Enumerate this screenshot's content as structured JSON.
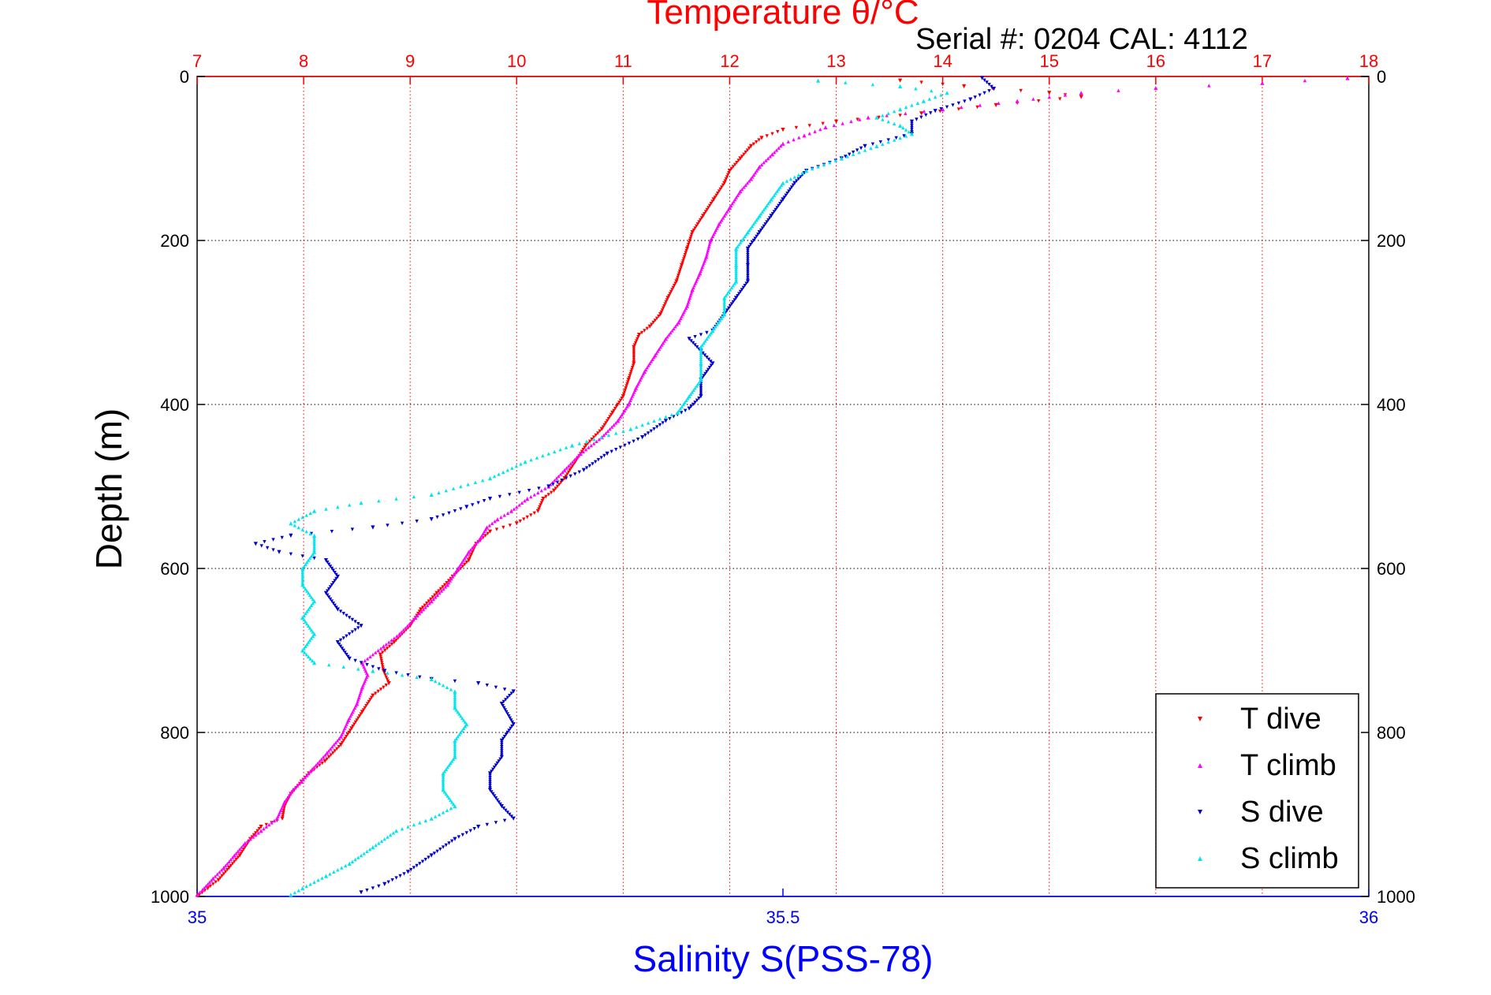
{
  "chart_data": {
    "type": "scatter",
    "title": "Temperature θ/°C",
    "subtitle": "Serial #: 0204  CAL: 4112",
    "ylabel": "Depth (m)",
    "xlabel": "Salinity S(PSS-78)",
    "ylim": [
      0,
      1000
    ],
    "y_reversed": true,
    "y_ticks": [
      "0",
      "200",
      "400",
      "600",
      "800",
      "1000"
    ],
    "temperature_axis": {
      "position": "top",
      "range": [
        7,
        18
      ],
      "ticks": [
        "7",
        "8",
        "9",
        "10",
        "11",
        "12",
        "13",
        "14",
        "15",
        "16",
        "17",
        "18"
      ],
      "color": "#ff0000"
    },
    "salinity_axis": {
      "position": "bottom",
      "range": [
        35,
        36
      ],
      "ticks": [
        "35",
        "35.5",
        "36"
      ],
      "color": "#0000ff"
    },
    "grid": true,
    "legend_position": "bottom-right",
    "series": [
      {
        "name": "T dive",
        "axis": "temperature",
        "color": "#ff0000",
        "marker": "triangle-down",
        "points": [
          [
            13.6,
            5
          ],
          [
            14.2,
            12
          ],
          [
            15.0,
            20
          ],
          [
            15.3,
            25
          ],
          [
            14.5,
            35
          ],
          [
            13.8,
            45
          ],
          [
            13.0,
            55
          ],
          [
            12.5,
            65
          ],
          [
            12.3,
            75
          ],
          [
            12.2,
            85
          ],
          [
            12.1,
            100
          ],
          [
            12.0,
            115
          ],
          [
            11.95,
            130
          ],
          [
            11.85,
            150
          ],
          [
            11.75,
            170
          ],
          [
            11.65,
            190
          ],
          [
            11.6,
            210
          ],
          [
            11.55,
            230
          ],
          [
            11.5,
            250
          ],
          [
            11.42,
            270
          ],
          [
            11.35,
            290
          ],
          [
            11.25,
            305
          ],
          [
            11.15,
            315
          ],
          [
            11.1,
            330
          ],
          [
            11.1,
            350
          ],
          [
            11.05,
            370
          ],
          [
            11.0,
            390
          ],
          [
            10.9,
            410
          ],
          [
            10.8,
            430
          ],
          [
            10.65,
            450
          ],
          [
            10.55,
            470
          ],
          [
            10.45,
            490
          ],
          [
            10.35,
            505
          ],
          [
            10.25,
            515
          ],
          [
            10.2,
            530
          ],
          [
            10.0,
            545
          ],
          [
            9.75,
            555
          ],
          [
            9.62,
            570
          ],
          [
            9.55,
            590
          ],
          [
            9.4,
            610
          ],
          [
            9.25,
            630
          ],
          [
            9.1,
            650
          ],
          [
            9.0,
            670
          ],
          [
            8.85,
            690
          ],
          [
            8.72,
            705
          ],
          [
            8.75,
            725
          ],
          [
            8.8,
            740
          ],
          [
            8.65,
            755
          ],
          [
            8.55,
            775
          ],
          [
            8.45,
            795
          ],
          [
            8.35,
            815
          ],
          [
            8.2,
            835
          ],
          [
            8.05,
            850
          ],
          [
            7.98,
            860
          ],
          [
            7.88,
            875
          ],
          [
            7.82,
            890
          ],
          [
            7.8,
            905
          ],
          [
            7.6,
            915
          ],
          [
            7.5,
            930
          ],
          [
            7.4,
            950
          ],
          [
            7.3,
            965
          ],
          [
            7.2,
            980
          ],
          [
            7.1,
            990
          ],
          [
            7.02,
            998
          ]
        ]
      },
      {
        "name": "T climb",
        "axis": "temperature",
        "color": "#ff00ff",
        "marker": "triangle-up",
        "points": [
          [
            17.8,
            2
          ],
          [
            17.0,
            8
          ],
          [
            16.0,
            14
          ],
          [
            15.3,
            20
          ],
          [
            14.7,
            30
          ],
          [
            14.0,
            40
          ],
          [
            13.3,
            50
          ],
          [
            12.9,
            62
          ],
          [
            12.7,
            72
          ],
          [
            12.5,
            82
          ],
          [
            12.4,
            95
          ],
          [
            12.28,
            110
          ],
          [
            12.2,
            125
          ],
          [
            12.1,
            140
          ],
          [
            12.0,
            160
          ],
          [
            11.9,
            180
          ],
          [
            11.82,
            200
          ],
          [
            11.78,
            220
          ],
          [
            11.72,
            240
          ],
          [
            11.65,
            260
          ],
          [
            11.6,
            280
          ],
          [
            11.52,
            300
          ],
          [
            11.4,
            320
          ],
          [
            11.3,
            340
          ],
          [
            11.2,
            360
          ],
          [
            11.12,
            380
          ],
          [
            11.05,
            400
          ],
          [
            10.95,
            420
          ],
          [
            10.8,
            440
          ],
          [
            10.6,
            460
          ],
          [
            10.45,
            480
          ],
          [
            10.3,
            500
          ],
          [
            10.1,
            515
          ],
          [
            9.95,
            530
          ],
          [
            9.82,
            540
          ],
          [
            9.72,
            550
          ],
          [
            9.65,
            565
          ],
          [
            9.55,
            580
          ],
          [
            9.45,
            600
          ],
          [
            9.35,
            620
          ],
          [
            9.2,
            640
          ],
          [
            9.05,
            660
          ],
          [
            8.9,
            680
          ],
          [
            8.75,
            695
          ],
          [
            8.55,
            715
          ],
          [
            8.6,
            730
          ],
          [
            8.55,
            745
          ],
          [
            8.5,
            765
          ],
          [
            8.42,
            785
          ],
          [
            8.35,
            805
          ],
          [
            8.22,
            825
          ],
          [
            8.08,
            845
          ],
          [
            7.98,
            860
          ],
          [
            7.9,
            870
          ],
          [
            7.82,
            885
          ],
          [
            7.75,
            905
          ],
          [
            7.6,
            920
          ],
          [
            7.45,
            935
          ],
          [
            7.35,
            950
          ],
          [
            7.25,
            965
          ],
          [
            7.15,
            978
          ],
          [
            7.05,
            992
          ],
          [
            7.0,
            998
          ]
        ]
      },
      {
        "name": "S dive",
        "axis": "salinity",
        "color": "#0000cc",
        "marker": "triangle-down",
        "points": [
          [
            35.67,
            2
          ],
          [
            35.68,
            15
          ],
          [
            35.66,
            28
          ],
          [
            35.63,
            42
          ],
          [
            35.61,
            55
          ],
          [
            35.61,
            70
          ],
          [
            35.57,
            85
          ],
          [
            35.55,
            100
          ],
          [
            35.52,
            115
          ],
          [
            35.51,
            130
          ],
          [
            35.5,
            150
          ],
          [
            35.49,
            170
          ],
          [
            35.48,
            190
          ],
          [
            35.47,
            210
          ],
          [
            35.47,
            230
          ],
          [
            35.47,
            250
          ],
          [
            35.46,
            270
          ],
          [
            35.45,
            290
          ],
          [
            35.44,
            310
          ],
          [
            35.42,
            320
          ],
          [
            35.43,
            335
          ],
          [
            35.44,
            350
          ],
          [
            35.43,
            370
          ],
          [
            35.43,
            390
          ],
          [
            35.42,
            405
          ],
          [
            35.4,
            420
          ],
          [
            35.38,
            440
          ],
          [
            35.35,
            460
          ],
          [
            35.33,
            480
          ],
          [
            35.3,
            500
          ],
          [
            35.25,
            515
          ],
          [
            35.23,
            525
          ],
          [
            35.2,
            540
          ],
          [
            35.15,
            550
          ],
          [
            35.08,
            560
          ],
          [
            35.05,
            570
          ],
          [
            35.07,
            580
          ],
          [
            35.11,
            590
          ],
          [
            35.12,
            610
          ],
          [
            35.11,
            630
          ],
          [
            35.12,
            650
          ],
          [
            35.14,
            670
          ],
          [
            35.12,
            690
          ],
          [
            35.13,
            710
          ],
          [
            35.16,
            725
          ],
          [
            35.2,
            735
          ],
          [
            35.24,
            740
          ],
          [
            35.27,
            750
          ],
          [
            35.26,
            765
          ],
          [
            35.27,
            790
          ],
          [
            35.26,
            810
          ],
          [
            35.26,
            830
          ],
          [
            35.25,
            850
          ],
          [
            35.25,
            870
          ],
          [
            35.26,
            890
          ],
          [
            35.27,
            905
          ],
          [
            35.24,
            915
          ],
          [
            35.22,
            930
          ],
          [
            35.2,
            950
          ],
          [
            35.18,
            970
          ],
          [
            35.16,
            985
          ],
          [
            35.14,
            995
          ]
        ]
      },
      {
        "name": "S climb",
        "axis": "salinity",
        "color": "#00e5ee",
        "marker": "triangle-up",
        "points": [
          [
            35.53,
            5
          ],
          [
            35.6,
            12
          ],
          [
            35.64,
            20
          ],
          [
            35.62,
            30
          ],
          [
            35.6,
            40
          ],
          [
            35.58,
            50
          ],
          [
            35.6,
            60
          ],
          [
            35.61,
            70
          ],
          [
            35.58,
            85
          ],
          [
            35.55,
            100
          ],
          [
            35.52,
            115
          ],
          [
            35.5,
            130
          ],
          [
            35.49,
            150
          ],
          [
            35.48,
            170
          ],
          [
            35.47,
            190
          ],
          [
            35.46,
            210
          ],
          [
            35.46,
            230
          ],
          [
            35.46,
            250
          ],
          [
            35.45,
            270
          ],
          [
            35.45,
            290
          ],
          [
            35.44,
            310
          ],
          [
            35.43,
            330
          ],
          [
            35.43,
            350
          ],
          [
            35.43,
            370
          ],
          [
            35.42,
            390
          ],
          [
            35.41,
            410
          ],
          [
            35.37,
            430
          ],
          [
            35.32,
            450
          ],
          [
            35.28,
            470
          ],
          [
            35.25,
            490
          ],
          [
            35.2,
            510
          ],
          [
            35.14,
            520
          ],
          [
            35.1,
            530
          ],
          [
            35.08,
            545
          ],
          [
            35.1,
            560
          ],
          [
            35.1,
            580
          ],
          [
            35.09,
            600
          ],
          [
            35.09,
            620
          ],
          [
            35.1,
            640
          ],
          [
            35.09,
            660
          ],
          [
            35.1,
            680
          ],
          [
            35.09,
            700
          ],
          [
            35.1,
            715
          ],
          [
            35.15,
            725
          ],
          [
            35.2,
            735
          ],
          [
            35.22,
            750
          ],
          [
            35.22,
            770
          ],
          [
            35.23,
            790
          ],
          [
            35.22,
            810
          ],
          [
            35.22,
            830
          ],
          [
            35.21,
            850
          ],
          [
            35.21,
            870
          ],
          [
            35.22,
            890
          ],
          [
            35.2,
            905
          ],
          [
            35.17,
            920
          ],
          [
            35.15,
            940
          ],
          [
            35.13,
            960
          ],
          [
            35.11,
            975
          ],
          [
            35.09,
            990
          ],
          [
            35.08,
            998
          ]
        ]
      }
    ]
  }
}
